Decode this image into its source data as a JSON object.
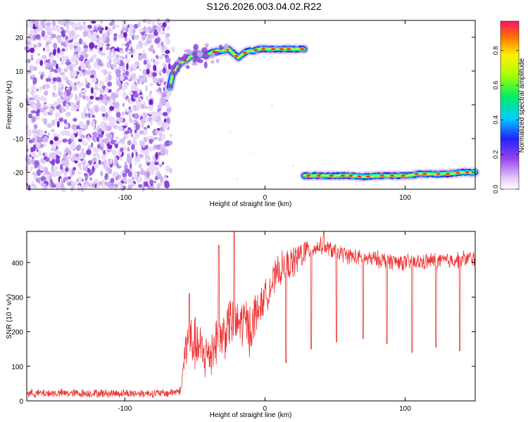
{
  "title": "S126.2026.003.04.02.R22",
  "chart_data": [
    {
      "type": "heatmap",
      "xlabel": "Height of straight line (km)",
      "ylabel": "Frequency (Hz)",
      "xlim": [
        -170,
        150
      ],
      "ylim": [
        -25,
        25
      ],
      "xticks": [
        -100,
        0,
        100
      ],
      "yticks": [
        -20,
        -10,
        0,
        10,
        20
      ],
      "colorbar": {
        "label": "Normalized spectral amplitude",
        "range": [
          0,
          0.97
        ],
        "ticks": [
          0.0,
          0.2,
          0.4,
          0.6,
          0.8
        ]
      },
      "noise_region_x": [
        -170,
        -68
      ],
      "series": [
        {
          "name": "upper tone",
          "points": [
            [
              -68,
              5
            ],
            [
              -66,
              9
            ],
            [
              -63,
              11
            ],
            [
              -60,
              12.5
            ],
            [
              -57,
              13
            ],
            [
              -54,
              14
            ],
            [
              -50,
              15
            ],
            [
              -46,
              15
            ],
            [
              -42,
              14.5
            ],
            [
              -38,
              15.5
            ],
            [
              -34,
              16
            ],
            [
              -30,
              16
            ],
            [
              -26,
              16.5
            ],
            [
              -22,
              15
            ],
            [
              -19,
              14
            ],
            [
              -16,
              15
            ],
            [
              -12,
              16
            ],
            [
              -8,
              16
            ],
            [
              -4,
              16.5
            ],
            [
              0,
              16.5
            ],
            [
              5,
              16.5
            ],
            [
              10,
              16.5
            ],
            [
              15,
              16.5
            ],
            [
              20,
              16.5
            ],
            [
              25,
              16.5
            ],
            [
              28,
              16.5
            ]
          ]
        },
        {
          "name": "lower tone",
          "points": [
            [
              28,
              -21
            ],
            [
              40,
              -21
            ],
            [
              50,
              -21
            ],
            [
              60,
              -21
            ],
            [
              70,
              -21.3
            ],
            [
              80,
              -21
            ],
            [
              90,
              -21
            ],
            [
              100,
              -21
            ],
            [
              110,
              -20.5
            ],
            [
              120,
              -20.5
            ],
            [
              130,
              -20.5
            ],
            [
              140,
              -20
            ],
            [
              150,
              -20
            ]
          ]
        }
      ]
    },
    {
      "type": "line",
      "xlabel": "Height of straight line (km)",
      "ylabel": "SNR (10 * v/v)",
      "xlim": [
        -170,
        150
      ],
      "ylim": [
        0,
        490
      ],
      "xticks": [
        -100,
        0,
        100
      ],
      "yticks": [
        0,
        100,
        200,
        300,
        400
      ],
      "color": "#ee3333",
      "series": [
        {
          "name": "SNR",
          "points": [
            [
              -170,
              22
            ],
            [
              -120,
              22
            ],
            [
              -70,
              22
            ],
            [
              -60,
              30
            ],
            [
              -57,
              150
            ],
            [
              -52,
              170
            ],
            [
              -45,
              140
            ],
            [
              -40,
              130
            ],
            [
              -35,
              180
            ],
            [
              -30,
              190
            ],
            [
              -25,
              230
            ],
            [
              -20,
              220
            ],
            [
              -15,
              230
            ],
            [
              -10,
              210
            ],
            [
              -5,
              260
            ],
            [
              0,
              300
            ],
            [
              5,
              340
            ],
            [
              10,
              375
            ],
            [
              15,
              390
            ],
            [
              20,
              400
            ],
            [
              25,
              420
            ],
            [
              30,
              435
            ],
            [
              35,
              440
            ],
            [
              40,
              448
            ],
            [
              45,
              440
            ],
            [
              50,
              432
            ],
            [
              60,
              420
            ],
            [
              70,
              410
            ],
            [
              80,
              410
            ],
            [
              90,
              405
            ],
            [
              100,
              400
            ],
            [
              110,
              400
            ],
            [
              120,
              405
            ],
            [
              130,
              405
            ],
            [
              140,
              410
            ],
            [
              150,
              412
            ]
          ],
          "dips": [
            [
              15,
              110
            ],
            [
              33,
              150
            ],
            [
              51,
              170
            ],
            [
              70,
              180
            ],
            [
              87,
              165
            ],
            [
              105,
              140
            ],
            [
              122,
              155
            ],
            [
              139,
              145
            ]
          ],
          "spikes": [
            [
              -54,
              310
            ],
            [
              -22,
              490
            ],
            [
              -33,
              450
            ],
            [
              42,
              490
            ]
          ]
        }
      ]
    }
  ]
}
